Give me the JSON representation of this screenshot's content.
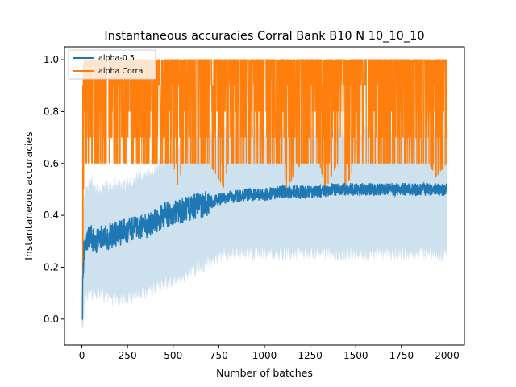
{
  "chart_data": {
    "type": "line",
    "title": "Instantaneous accuracies Corral Bank B10 N 10_10_10",
    "xlabel": "Number of batches",
    "ylabel": "Instantaneous accuracies",
    "xlim": [
      -95,
      2095
    ],
    "ylim": [
      -0.1,
      1.05
    ],
    "xticks": [
      0,
      250,
      500,
      750,
      1000,
      1250,
      1500,
      1750,
      2000
    ],
    "xtick_labels": [
      "0",
      "250",
      "500",
      "750",
      "1000",
      "1250",
      "1500",
      "1750",
      "2000"
    ],
    "yticks": [
      0.0,
      0.2,
      0.4,
      0.6,
      0.8,
      1.0
    ],
    "ytick_labels": [
      "0.0",
      "0.2",
      "0.4",
      "0.6",
      "0.8",
      "1.0"
    ],
    "grid": false,
    "legend_position": "top-left",
    "series": [
      {
        "name": "alpha-0.5",
        "color": "#1f77b4",
        "band_color": "#1f77b4",
        "band_opacity": 0.22,
        "x": [
          0,
          10,
          20,
          40,
          60,
          80,
          100,
          150,
          200,
          250,
          300,
          350,
          400,
          450,
          500,
          550,
          600,
          650,
          700,
          750,
          800,
          900,
          1000,
          1100,
          1200,
          1300,
          1400,
          1500,
          1600,
          1700,
          1800,
          1900,
          2000
        ],
        "mean": [
          0.0,
          0.25,
          0.3,
          0.32,
          0.31,
          0.3,
          0.31,
          0.32,
          0.33,
          0.34,
          0.35,
          0.36,
          0.38,
          0.4,
          0.41,
          0.42,
          0.43,
          0.44,
          0.45,
          0.46,
          0.47,
          0.48,
          0.48,
          0.49,
          0.49,
          0.49,
          0.5,
          0.5,
          0.5,
          0.5,
          0.5,
          0.5,
          0.5
        ],
        "lower": [
          -0.05,
          0.0,
          0.08,
          0.1,
          0.1,
          0.1,
          0.1,
          0.07,
          0.07,
          0.08,
          0.1,
          0.1,
          0.12,
          0.13,
          0.15,
          0.16,
          0.18,
          0.2,
          0.22,
          0.24,
          0.25,
          0.25,
          0.25,
          0.25,
          0.25,
          0.25,
          0.25,
          0.25,
          0.25,
          0.25,
          0.25,
          0.25,
          0.25
        ],
        "upper": [
          0.0,
          0.45,
          0.5,
          0.52,
          0.52,
          0.5,
          0.5,
          0.52,
          0.52,
          0.52,
          0.55,
          0.56,
          0.58,
          0.62,
          0.64,
          0.66,
          0.68,
          0.7,
          0.71,
          0.72,
          0.72,
          0.72,
          0.72,
          0.72,
          0.72,
          0.72,
          0.72,
          0.72,
          0.72,
          0.72,
          0.72,
          0.72,
          0.72
        ]
      },
      {
        "name": "alpha Corral",
        "color": "#ff7f0e",
        "x": [
          0,
          5,
          10,
          20,
          50,
          100,
          200,
          300,
          400,
          500,
          530,
          550,
          600,
          700,
          780,
          800,
          900,
          1000,
          1100,
          1120,
          1200,
          1300,
          1335,
          1400,
          1445,
          1500,
          1600,
          1700,
          1800,
          1900,
          1940,
          2000
        ],
        "low": [
          0.0,
          0.0,
          0.5,
          0.6,
          0.6,
          0.6,
          0.6,
          0.6,
          0.6,
          0.6,
          0.5,
          0.6,
          0.6,
          0.6,
          0.5,
          0.6,
          0.6,
          0.6,
          0.6,
          0.5,
          0.6,
          0.6,
          0.5,
          0.6,
          0.5,
          0.6,
          0.6,
          0.6,
          0.6,
          0.6,
          0.55,
          0.6
        ],
        "high": [
          0.0,
          0.9,
          1.0,
          1.0,
          1.0,
          1.0,
          1.0,
          1.0,
          1.0,
          1.0,
          1.0,
          1.0,
          1.0,
          1.0,
          1.0,
          1.0,
          1.0,
          1.0,
          1.0,
          1.0,
          1.0,
          1.0,
          1.0,
          1.0,
          1.0,
          1.0,
          1.0,
          1.0,
          1.0,
          1.0,
          1.0,
          1.0
        ]
      }
    ]
  }
}
